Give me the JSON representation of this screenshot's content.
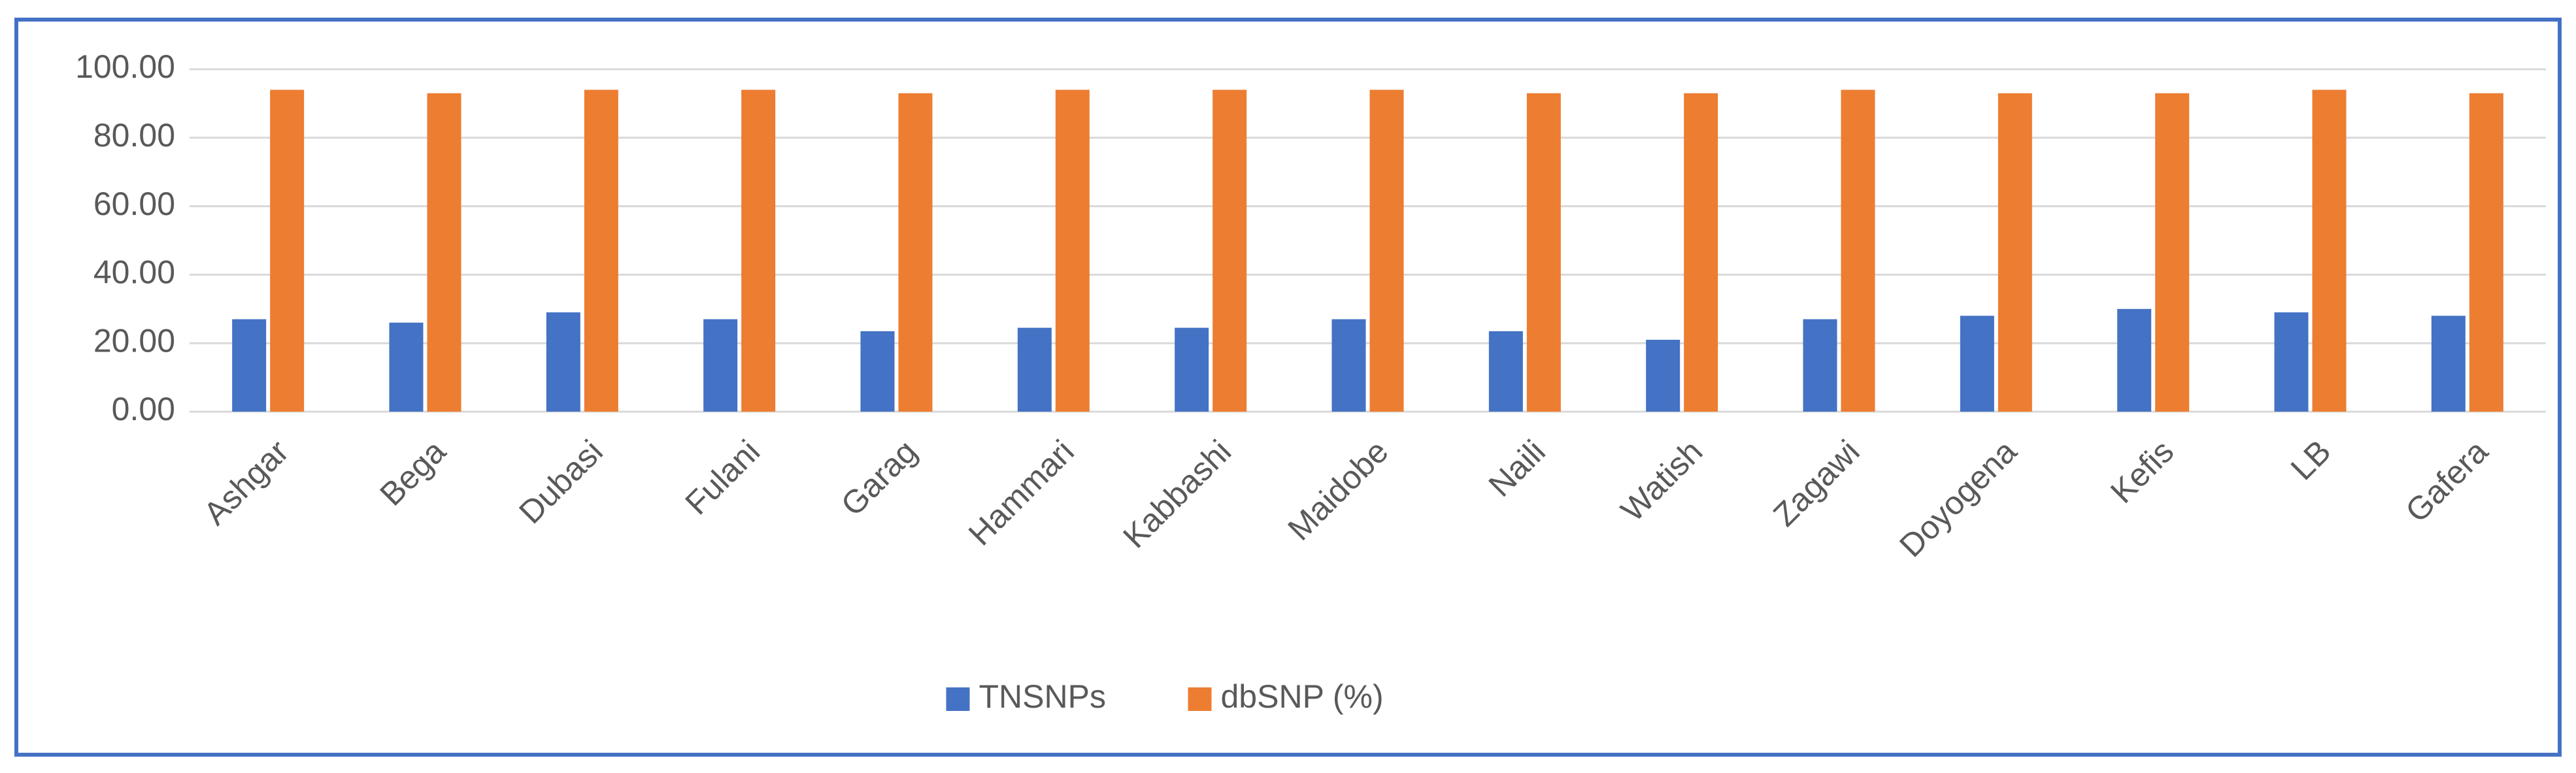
{
  "chart_data": {
    "type": "bar",
    "categories": [
      "Ashgar",
      "Bega",
      "Dubasi",
      "Fulani",
      "Garag",
      "Hammari",
      "Kabbashi",
      "Maidobe",
      "Naili",
      "Watish",
      "Zagawi",
      "Doyogena",
      "Kefis",
      "LB",
      "Gafera"
    ],
    "series": [
      {
        "name": "TNSNPs",
        "color": "#4472c4",
        "values": [
          27,
          26,
          29,
          27,
          23.5,
          24.5,
          24.5,
          27,
          23.5,
          21,
          27,
          28,
          30,
          29,
          28
        ]
      },
      {
        "name": "dbSNP (%)",
        "color": "#ed7d31",
        "values": [
          94,
          93,
          94,
          94,
          93,
          94,
          94,
          94,
          93,
          93,
          94,
          93,
          93,
          94,
          93
        ]
      }
    ],
    "ylim": [
      0,
      100
    ],
    "yticks": [
      {
        "value": 0,
        "label": "0.00"
      },
      {
        "value": 20,
        "label": "20.00"
      },
      {
        "value": 40,
        "label": "40.00"
      },
      {
        "value": 60,
        "label": "60.00"
      },
      {
        "value": 80,
        "label": "80.00"
      },
      {
        "value": 100,
        "label": "100.00"
      }
    ],
    "grid": true,
    "legend": "bottom"
  }
}
